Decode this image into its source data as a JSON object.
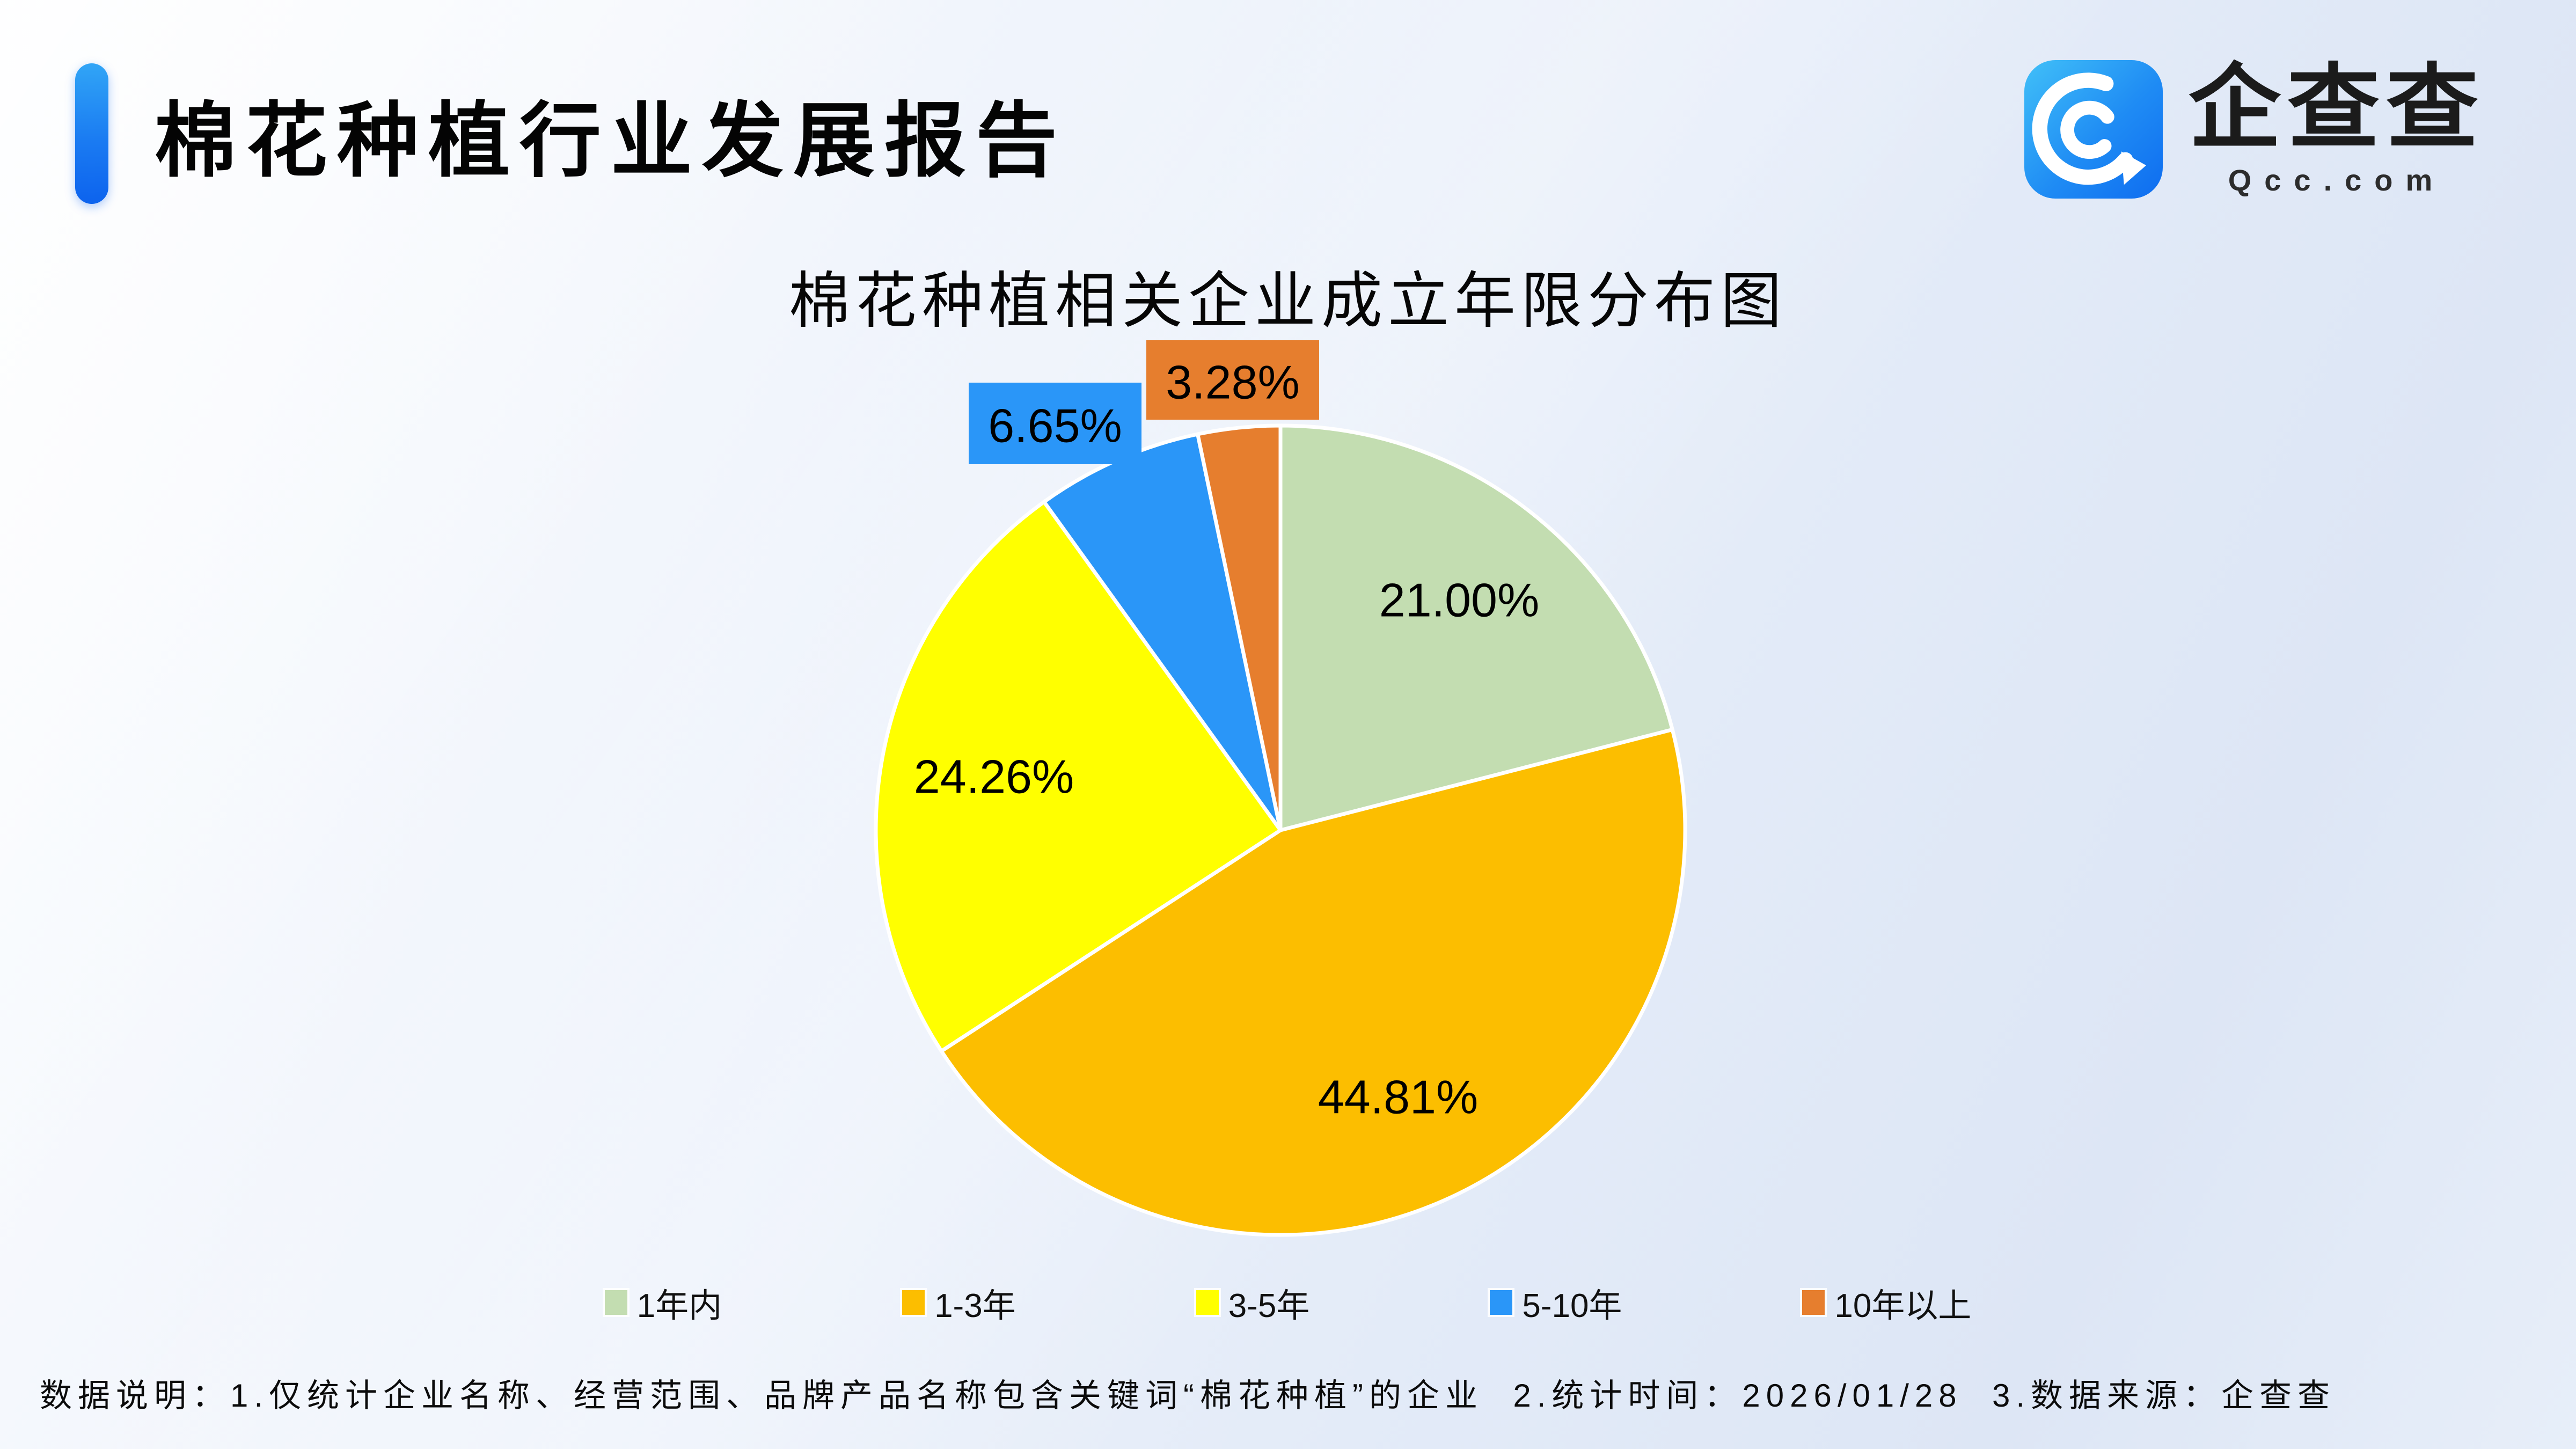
{
  "report": {
    "title": "棉花种植行业发展报告"
  },
  "logo": {
    "name": "企查查",
    "domain": "Qcc.com",
    "icon": "qcc-spiral-q-icon",
    "brand_blue": "#1f8cf4"
  },
  "chart": {
    "title": "棉花种植相关企业成立年限分布图"
  },
  "chart_data": {
    "type": "pie",
    "title": "棉花种植相关企业成立年限分布图",
    "categories": [
      "1年内",
      "1-3年",
      "3-5年",
      "5-10年",
      "10年以上"
    ],
    "values": [
      21.0,
      44.81,
      24.26,
      6.65,
      3.28
    ],
    "display_labels": [
      "21.00%",
      "44.81%",
      "24.26%",
      "6.65%",
      "3.28%"
    ],
    "colors": [
      "#c3ddb1",
      "#fcbe00",
      "#ffff00",
      "#2a96f8",
      "#e67e2e"
    ],
    "start_angle_deg": 0,
    "direction": "clockwise",
    "label_color": "#000000",
    "slice_border_color": "#ffffff",
    "legend_position": "bottom",
    "small_slice_label_style": "callout-box"
  },
  "footnote": {
    "text": "数据说明：1.仅统计企业名称、经营范围、品牌产品名称包含关键词“棉花种植”的企业  2.统计时间：2026/01/28  3.数据来源：企查查"
  }
}
